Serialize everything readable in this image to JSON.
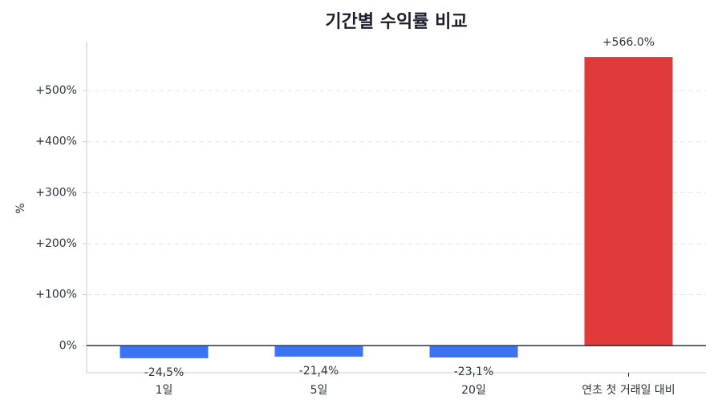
{
  "chart_data": {
    "type": "bar",
    "title": "기간별 수익률 비교",
    "y_label": "%",
    "categories": [
      "1일",
      "5일",
      "20일",
      "연초 첫 거래일 대비"
    ],
    "values": [
      -24.5,
      -21.4,
      -23.1,
      566.0
    ],
    "value_labels": [
      "-24.5%",
      "-21.4%",
      "-23.1%",
      "+566.0%"
    ],
    "colors": [
      "#3b73f0",
      "#3b73f0",
      "#3b73f0",
      "#e03a3a"
    ],
    "ylim": [
      -53,
      596
    ],
    "yticks": [
      {
        "value": 0,
        "label": "0%"
      },
      {
        "value": 100,
        "label": "+100%"
      },
      {
        "value": 200,
        "label": "+200%"
      },
      {
        "value": 300,
        "label": "+300%"
      },
      {
        "value": 400,
        "label": "+400%"
      },
      {
        "value": 500,
        "label": "+500%"
      }
    ],
    "grid": true
  }
}
